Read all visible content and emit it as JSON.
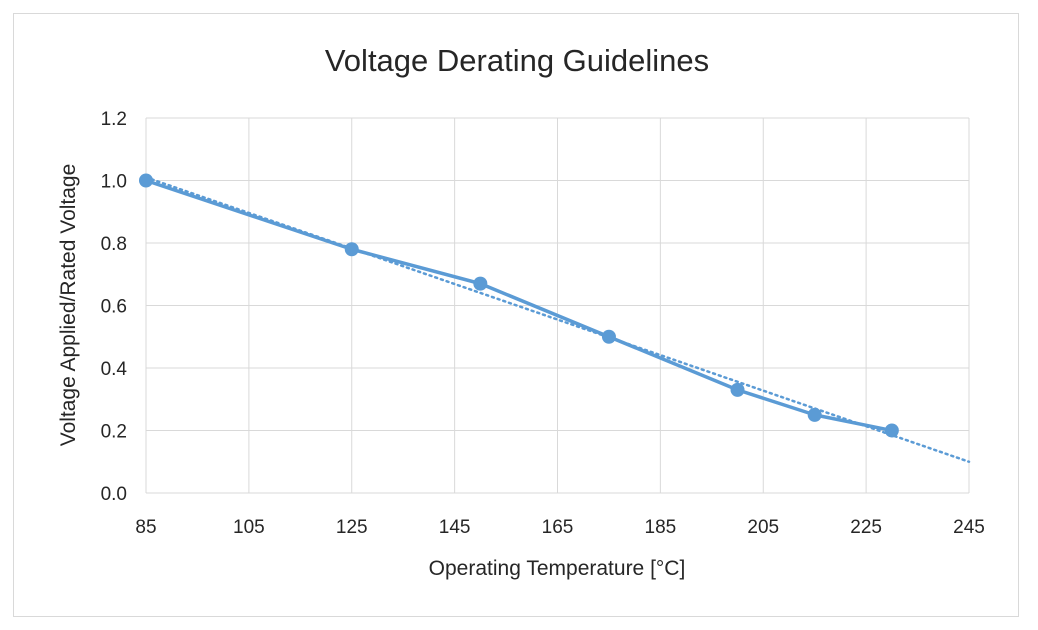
{
  "chart_data": {
    "type": "line",
    "title": "Voltage Derating Guidelines",
    "xlabel": "Operating Temperature [°C]",
    "ylabel": "Voltage Applied/Rated Voltage",
    "xlim": [
      85,
      245
    ],
    "ylim": [
      0.0,
      1.2
    ],
    "x_ticks": [
      85,
      105,
      125,
      145,
      165,
      185,
      205,
      225,
      245
    ],
    "y_ticks": [
      0.0,
      0.2,
      0.4,
      0.6,
      0.8,
      1.0,
      1.2
    ],
    "y_tick_labels": [
      "0.0",
      "0.2",
      "0.4",
      "0.6",
      "0.8",
      "1.0",
      "1.2"
    ],
    "grid": true,
    "series": [
      {
        "x": [
          85,
          125,
          150,
          175,
          200,
          215,
          230
        ],
        "y": [
          1.0,
          0.78,
          0.67,
          0.5,
          0.33,
          0.25,
          0.2
        ],
        "color": "#5b9bd5",
        "marker": "circle"
      }
    ],
    "trendline": {
      "style": "dotted",
      "color": "#5b9bd5",
      "x": [
        85,
        245
      ],
      "y": [
        1.01,
        0.1
      ]
    }
  }
}
